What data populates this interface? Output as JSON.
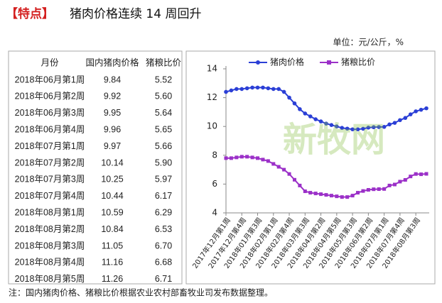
{
  "header": {
    "tag": "【特点】",
    "title": "猪肉价格连续 14 周回升"
  },
  "unit": "单位：元/公斤，%",
  "table": {
    "columns": [
      "月份",
      "国内猪肉价格",
      "猪粮比价"
    ],
    "rows": [
      [
        "2018年06月第1周",
        "9.84",
        "5.52"
      ],
      [
        "2018年06月第2周",
        "9.92",
        "5.60"
      ],
      [
        "2018年06月第3周",
        "9.95",
        "5.64"
      ],
      [
        "2018年06月第4周",
        "9.96",
        "5.65"
      ],
      [
        "2018年07月第1周",
        "9.97",
        "5.66"
      ],
      [
        "2018年07月第2周",
        "10.14",
        "5.90"
      ],
      [
        "2018年07月第3周",
        "10.25",
        "5.97"
      ],
      [
        "2018年07月第4周",
        "10.44",
        "6.17"
      ],
      [
        "2018年08月第1周",
        "10.59",
        "6.29"
      ],
      [
        "2018年08月第2周",
        "10.84",
        "6.53"
      ],
      [
        "2018年08月第3周",
        "11.05",
        "6.70"
      ],
      [
        "2018年08月第4周",
        "11.16",
        "6.68"
      ],
      [
        "2018年08月第5周",
        "11.26",
        "6.71"
      ]
    ]
  },
  "chart_data": {
    "type": "line",
    "categories": [
      "2017年12月第1周",
      null,
      null,
      "2017年12月第4周",
      null,
      null,
      "2018年01月第3周",
      null,
      null,
      "2018年02月第1周",
      null,
      null,
      "2018年02月第4周",
      null,
      null,
      "2018年03月第3周",
      null,
      null,
      "2018年04月第2周",
      null,
      null,
      "2018年04月第5周",
      null,
      null,
      "2018年05月第3周",
      null,
      null,
      "2018年06月第2周",
      null,
      null,
      "2018年07月第1周",
      null,
      null,
      "2018年07月第4周",
      null,
      null,
      "2018年08月第3周",
      null,
      null
    ],
    "series": [
      {
        "name": "猪肉价格",
        "color": "#2b3fd6",
        "marker": "circle",
        "values": [
          12.4,
          12.5,
          12.6,
          12.6,
          12.65,
          12.7,
          12.7,
          12.7,
          12.65,
          12.6,
          12.6,
          12.4,
          12.0,
          11.6,
          11.2,
          10.9,
          10.7,
          10.5,
          10.35,
          10.2,
          10.1,
          10.0,
          9.9,
          9.85,
          9.8,
          9.8,
          9.84,
          9.92,
          9.95,
          9.96,
          9.97,
          10.14,
          10.25,
          10.44,
          10.59,
          10.84,
          11.05,
          11.16,
          11.26
        ]
      },
      {
        "name": "猪粮比价",
        "color": "#9b30c8",
        "marker": "square",
        "values": [
          7.8,
          7.8,
          7.85,
          7.9,
          7.9,
          7.85,
          7.8,
          7.7,
          7.6,
          7.4,
          7.2,
          7.0,
          6.7,
          6.3,
          5.9,
          5.5,
          5.4,
          5.35,
          5.3,
          5.25,
          5.2,
          5.15,
          5.1,
          5.1,
          5.2,
          5.4,
          5.52,
          5.6,
          5.64,
          5.65,
          5.66,
          5.9,
          5.97,
          6.17,
          6.29,
          6.53,
          6.7,
          6.68,
          6.71
        ]
      }
    ],
    "ylim": [
      4,
      14
    ],
    "yticks": [
      4,
      6,
      8,
      10,
      12,
      14
    ],
    "legend": "top"
  },
  "watermark": "新牧网",
  "footnote": "注：国内猪肉价格、猪粮比价根据农业农村部畜牧业司发布数据整理。"
}
